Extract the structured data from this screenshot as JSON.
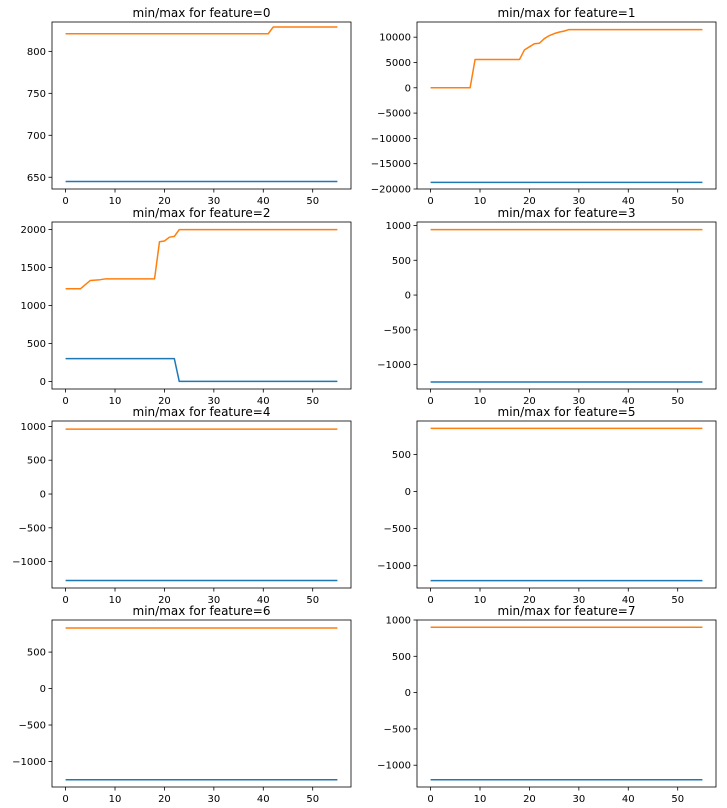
{
  "figure": {
    "background": "#ffffff",
    "axes_color": "#000000",
    "series_colors": {
      "min": "#1f77b4",
      "max": "#ff7f0e"
    }
  },
  "chart_data": [
    {
      "type": "line",
      "title": "min/max for feature=0",
      "xlim": [
        -2.75,
        57.75
      ],
      "ylim": [
        636,
        835
      ],
      "xticks": [
        0,
        10,
        20,
        30,
        40,
        50
      ],
      "yticks": [
        650,
        700,
        750,
        800
      ],
      "series": [
        {
          "role": "min",
          "points": [
            [
              0,
              645
            ],
            [
              55,
              645
            ]
          ]
        },
        {
          "role": "max",
          "points": [
            [
              0,
              821
            ],
            [
              41,
              821
            ],
            [
              42,
              829
            ],
            [
              55,
              829
            ]
          ]
        }
      ]
    },
    {
      "type": "line",
      "title": "min/max for feature=1",
      "xlim": [
        -2.75,
        57.75
      ],
      "ylim": [
        -20000,
        13000
      ],
      "xticks": [
        0,
        10,
        20,
        30,
        40,
        50
      ],
      "yticks": [
        -20000,
        -15000,
        -10000,
        -5000,
        0,
        5000,
        10000
      ],
      "series": [
        {
          "role": "min",
          "points": [
            [
              0,
              -18700
            ],
            [
              55,
              -18700
            ]
          ]
        },
        {
          "role": "max",
          "points": [
            [
              0,
              0
            ],
            [
              8,
              0
            ],
            [
              9,
              5600
            ],
            [
              18,
              5600
            ],
            [
              19,
              7500
            ],
            [
              20,
              8100
            ],
            [
              21,
              8700
            ],
            [
              22,
              8800
            ],
            [
              23,
              9700
            ],
            [
              24,
              10300
            ],
            [
              25,
              10700
            ],
            [
              26,
              11000
            ],
            [
              27,
              11200
            ],
            [
              28,
              11500
            ],
            [
              55,
              11500
            ]
          ]
        }
      ]
    },
    {
      "type": "line",
      "title": "min/max for feature=2",
      "xlim": [
        -2.75,
        57.75
      ],
      "ylim": [
        -100,
        2100
      ],
      "xticks": [
        0,
        10,
        20,
        30,
        40,
        50
      ],
      "yticks": [
        0,
        500,
        1000,
        1500,
        2000
      ],
      "series": [
        {
          "role": "min",
          "points": [
            [
              0,
              300
            ],
            [
              22,
              300
            ],
            [
              23,
              0
            ],
            [
              55,
              0
            ]
          ]
        },
        {
          "role": "max",
          "points": [
            [
              0,
              1220
            ],
            [
              3,
              1220
            ],
            [
              5,
              1330
            ],
            [
              7,
              1340
            ],
            [
              8,
              1350
            ],
            [
              18,
              1350
            ],
            [
              19,
              1840
            ],
            [
              20,
              1850
            ],
            [
              21,
              1900
            ],
            [
              22,
              1910
            ],
            [
              23,
              2000
            ],
            [
              55,
              2000
            ]
          ]
        }
      ]
    },
    {
      "type": "line",
      "title": "min/max for feature=3",
      "xlim": [
        -2.75,
        57.75
      ],
      "ylim": [
        -1350,
        1050
      ],
      "xticks": [
        0,
        10,
        20,
        30,
        40,
        50
      ],
      "yticks": [
        -1000,
        -500,
        0,
        500,
        1000
      ],
      "series": [
        {
          "role": "min",
          "points": [
            [
              0,
              -1250
            ],
            [
              55,
              -1250
            ]
          ]
        },
        {
          "role": "max",
          "points": [
            [
              0,
              940
            ],
            [
              55,
              940
            ]
          ]
        }
      ]
    },
    {
      "type": "line",
      "title": "min/max for feature=4",
      "xlim": [
        -2.75,
        57.75
      ],
      "ylim": [
        -1390,
        1080
      ],
      "xticks": [
        0,
        10,
        20,
        30,
        40,
        50
      ],
      "yticks": [
        -1000,
        -500,
        0,
        500,
        1000
      ],
      "series": [
        {
          "role": "min",
          "points": [
            [
              0,
              -1280
            ],
            [
              55,
              -1280
            ]
          ]
        },
        {
          "role": "max",
          "points": [
            [
              0,
              960
            ],
            [
              55,
              960
            ]
          ]
        }
      ]
    },
    {
      "type": "line",
      "title": "min/max for feature=5",
      "xlim": [
        -2.75,
        57.75
      ],
      "ylim": [
        -1300,
        950
      ],
      "xticks": [
        0,
        10,
        20,
        30,
        40,
        50
      ],
      "yticks": [
        -1000,
        -500,
        0,
        500
      ],
      "series": [
        {
          "role": "min",
          "points": [
            [
              0,
              -1200
            ],
            [
              55,
              -1200
            ]
          ]
        },
        {
          "role": "max",
          "points": [
            [
              0,
              850
            ],
            [
              55,
              850
            ]
          ]
        }
      ]
    },
    {
      "type": "line",
      "title": "min/max for feature=6",
      "xlim": [
        -2.75,
        57.75
      ],
      "ylim": [
        -1350,
        940
      ],
      "xticks": [
        0,
        10,
        20,
        30,
        40,
        50
      ],
      "yticks": [
        -1000,
        -500,
        0,
        500
      ],
      "series": [
        {
          "role": "min",
          "points": [
            [
              0,
              -1250
            ],
            [
              55,
              -1250
            ]
          ]
        },
        {
          "role": "max",
          "points": [
            [
              0,
              830
            ],
            [
              55,
              830
            ]
          ]
        }
      ]
    },
    {
      "type": "line",
      "title": "min/max for feature=7",
      "xlim": [
        -2.75,
        57.75
      ],
      "ylim": [
        -1300,
        1000
      ],
      "xticks": [
        0,
        10,
        20,
        30,
        40,
        50
      ],
      "yticks": [
        -1000,
        -500,
        0,
        500,
        1000
      ],
      "series": [
        {
          "role": "min",
          "points": [
            [
              0,
              -1200
            ],
            [
              55,
              -1200
            ]
          ]
        },
        {
          "role": "max",
          "points": [
            [
              0,
              900
            ],
            [
              55,
              900
            ]
          ]
        }
      ]
    }
  ]
}
